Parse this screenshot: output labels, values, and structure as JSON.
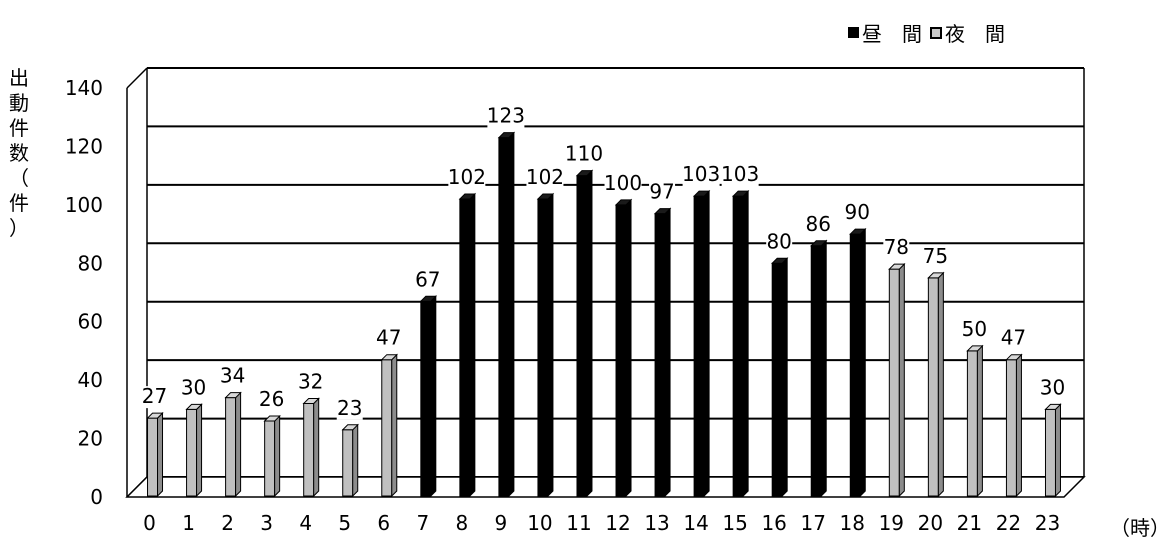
{
  "chart_data": {
    "type": "bar",
    "categories": [
      "0",
      "1",
      "2",
      "3",
      "4",
      "5",
      "6",
      "7",
      "8",
      "9",
      "10",
      "11",
      "12",
      "13",
      "14",
      "15",
      "16",
      "17",
      "18",
      "19",
      "20",
      "21",
      "22",
      "23"
    ],
    "series": [
      {
        "name": "昼　間",
        "color": "#000000",
        "values": [
          null,
          null,
          null,
          null,
          null,
          null,
          null,
          67,
          102,
          123,
          102,
          110,
          100,
          97,
          103,
          103,
          80,
          86,
          90,
          null,
          null,
          null,
          null,
          null
        ]
      },
      {
        "name": "夜　間",
        "color": "#c0c0c0",
        "values": [
          27,
          30,
          34,
          26,
          32,
          23,
          47,
          null,
          null,
          null,
          null,
          null,
          null,
          null,
          null,
          null,
          null,
          null,
          null,
          78,
          75,
          50,
          47,
          30
        ]
      }
    ],
    "ylabel": "出動件数（件）",
    "xlabel": "（時）",
    "ylim": [
      0,
      140
    ],
    "yticks": [
      0,
      20,
      40,
      60,
      80,
      100,
      120,
      140
    ],
    "grid": true,
    "legend": "top-right"
  }
}
